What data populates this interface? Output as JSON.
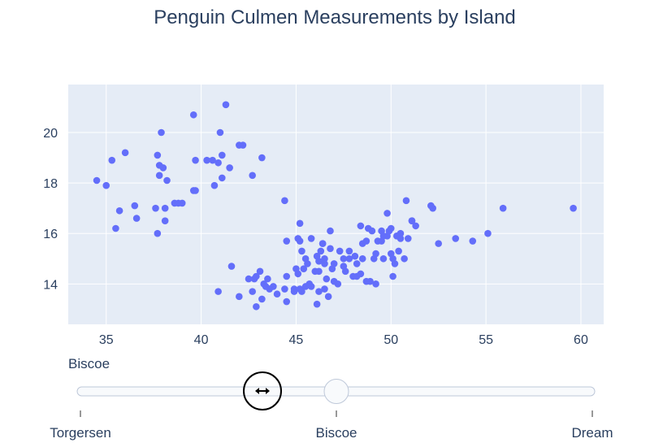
{
  "chart_data": {
    "type": "scatter",
    "title": "Penguin Culmen Measurements by Island",
    "xlabel": "",
    "ylabel": "",
    "xlim": [
      33,
      61.2
    ],
    "ylim": [
      12.4,
      21.9
    ],
    "xticks": [
      35,
      40,
      45,
      50,
      55,
      60
    ],
    "yticks": [
      14,
      16,
      18,
      20
    ],
    "grid": true,
    "marker_color": "#636efa",
    "series": [
      {
        "name": "",
        "x": [
          34.5,
          35.0,
          35.3,
          35.5,
          35.7,
          36.0,
          36.5,
          36.6,
          37.6,
          37.7,
          37.7,
          37.8,
          37.8,
          37.9,
          38.0,
          38.1,
          38.1,
          38.2,
          38.6,
          38.8,
          39.0,
          39.6,
          39.6,
          39.7,
          39.7,
          40.3,
          40.6,
          40.7,
          40.9,
          41.0,
          41.1,
          41.1,
          41.3,
          41.5,
          42.0,
          42.2,
          42.7,
          43.2,
          40.9,
          41.6,
          42.0,
          42.5,
          42.7,
          42.8,
          42.9,
          43.1,
          43.2,
          43.3,
          43.5,
          43.8,
          44.0,
          44.4,
          44.5,
          44.5,
          44.9,
          45.0,
          45.1,
          45.2,
          45.2,
          45.3,
          45.4,
          45.5,
          45.5,
          45.6,
          45.8,
          46.1,
          46.1,
          46.2,
          46.2,
          46.3,
          46.4,
          46.5,
          46.5,
          46.5,
          46.6,
          46.8,
          46.9,
          47.0,
          47.2,
          47.5,
          47.6,
          47.8,
          48.1,
          48.2,
          48.4,
          48.5,
          48.7,
          48.8,
          49.1,
          49.2,
          49.5,
          49.6,
          49.8,
          49.9,
          50.0,
          50.1,
          50.2,
          50.3,
          50.4,
          50.5,
          50.7,
          51.1,
          51.3,
          52.2,
          52.5,
          53.4,
          54.3,
          55.1,
          55.9,
          59.6,
          44.4,
          45.1,
          45.2,
          46.8,
          47.3,
          48.4,
          48.7,
          49.0,
          49.3,
          49.8,
          50.0,
          50.8,
          51.1,
          52.1,
          44.5,
          45.7,
          46.0,
          46.4,
          47.5,
          48.2,
          48.5,
          49.2,
          49.6,
          50.1,
          50.5,
          42.9,
          43.6,
          44.9,
          46.2,
          47.0,
          48.0,
          49.5,
          50.9,
          43.4,
          45.8,
          47.8,
          46.7,
          45.3,
          48.9
        ],
        "y": [
          18.1,
          17.9,
          18.9,
          16.2,
          16.9,
          19.2,
          17.1,
          16.6,
          17.0,
          16.0,
          19.1,
          18.7,
          18.3,
          20.0,
          18.6,
          17.0,
          16.5,
          18.1,
          17.2,
          17.2,
          17.2,
          20.7,
          17.7,
          18.9,
          17.7,
          18.9,
          18.9,
          17.9,
          18.8,
          20.0,
          18.2,
          19.1,
          21.1,
          18.6,
          19.5,
          19.5,
          18.3,
          19.0,
          13.7,
          14.7,
          13.5,
          14.2,
          13.7,
          14.2,
          13.1,
          14.5,
          13.4,
          14.0,
          14.2,
          13.9,
          13.6,
          13.8,
          14.3,
          13.3,
          13.8,
          14.6,
          14.4,
          13.8,
          16.4,
          13.7,
          14.6,
          13.9,
          15.0,
          14.8,
          13.9,
          13.2,
          15.1,
          14.5,
          13.7,
          15.3,
          15.6,
          14.8,
          15.0,
          13.8,
          14.2,
          15.4,
          14.6,
          14.8,
          14.0,
          15.0,
          14.5,
          15.0,
          15.1,
          14.3,
          14.4,
          15.0,
          14.1,
          16.2,
          15.0,
          15.2,
          16.1,
          15.0,
          15.9,
          16.1,
          15.2,
          15.0,
          14.8,
          15.9,
          15.3,
          16.0,
          15.0,
          16.5,
          16.3,
          17.0,
          15.6,
          15.8,
          15.7,
          16.0,
          17.0,
          17.0,
          17.3,
          15.8,
          15.7,
          16.1,
          15.3,
          16.3,
          15.7,
          16.1,
          15.7,
          16.8,
          16.2,
          17.3,
          16.5,
          17.1,
          15.7,
          14.0,
          14.5,
          15.6,
          14.7,
          14.8,
          15.6,
          14.0,
          15.9,
          14.3,
          15.8,
          14.3,
          13.8,
          13.7,
          14.9,
          14.1,
          14.3,
          15.7,
          15.8,
          13.9,
          15.8,
          15.3,
          13.5,
          15.3,
          14.1
        ]
      }
    ],
    "slider": {
      "current_label": "Biscoe",
      "steps": [
        "Torgersen",
        "Biscoe",
        "Dream"
      ],
      "active_index": 1
    }
  }
}
